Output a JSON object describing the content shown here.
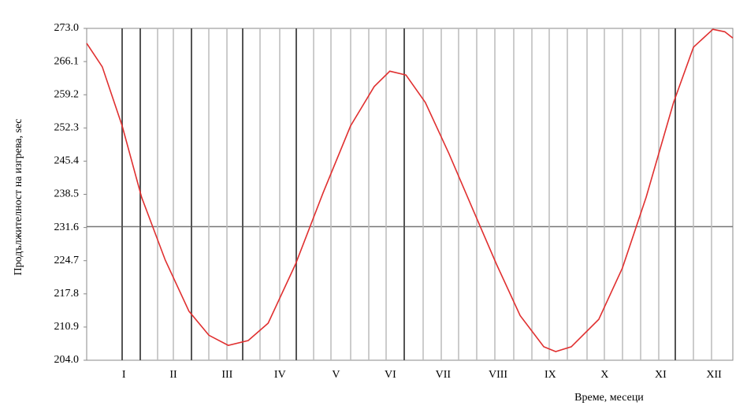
{
  "chart_data": {
    "type": "line",
    "ylabel": "Продължителност на изгрева, sec",
    "xlabel": "Време, месеци",
    "ylim": [
      204,
      273
    ],
    "yticks": [
      {
        "value": 204,
        "label": "204.0"
      },
      210.9,
      217.8,
      224.7,
      231.6,
      238.5,
      245.4,
      252.3,
      259.2,
      266.1,
      {
        "value": 273,
        "label": "273.0"
      }
    ],
    "xlim": [
      0,
      12
    ],
    "xticks": [
      {
        "value": 0.69,
        "label": "I"
      },
      {
        "value": 1.61,
        "label": "II"
      },
      {
        "value": 2.61,
        "label": "III"
      },
      {
        "value": 3.59,
        "label": "IV"
      },
      {
        "value": 4.63,
        "label": "V"
      },
      {
        "value": 5.64,
        "label": "VI"
      },
      {
        "value": 6.62,
        "label": "VII"
      },
      {
        "value": 7.64,
        "label": "VIII"
      },
      {
        "value": 8.61,
        "label": "IX"
      },
      {
        "value": 9.62,
        "label": "X"
      },
      {
        "value": 10.66,
        "label": "XI"
      },
      {
        "value": 11.65,
        "label": "XII"
      }
    ],
    "series": [
      {
        "color": "#e03030",
        "x": [
          0,
          0.29,
          0.66,
          1.02,
          1.46,
          1.9,
          2.27,
          2.63,
          3.0,
          3.37,
          3.88,
          4.39,
          4.9,
          5.34,
          5.63,
          5.93,
          6.29,
          6.73,
          7.17,
          7.61,
          8.05,
          8.49,
          8.71,
          9.0,
          9.51,
          9.95,
          10.39,
          10.9,
          11.27,
          11.63,
          11.85,
          12
        ],
        "values": [
          269.9,
          265.0,
          252.7,
          237.9,
          224.8,
          214.2,
          209.2,
          207.1,
          208.1,
          211.7,
          224.0,
          238.8,
          252.7,
          260.9,
          264.1,
          263.3,
          257.6,
          246.9,
          235.4,
          224.0,
          213.3,
          206.8,
          205.8,
          206.8,
          212.5,
          223.2,
          237.9,
          257.6,
          269.1,
          272.8,
          272.3,
          271.0
        ]
      }
    ]
  }
}
